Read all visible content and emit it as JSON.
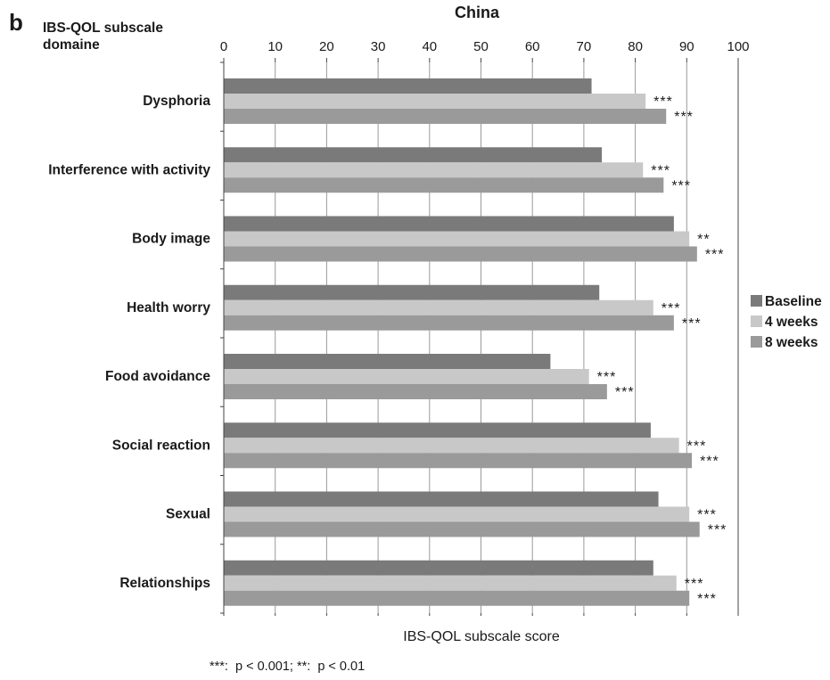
{
  "panel_letter": "b",
  "footnote": "***:  p < 0.001; **:  p < 0.01",
  "chart_data": {
    "type": "bar",
    "orientation": "horizontal",
    "title": "China",
    "ylabel": "IBS-QOL subscale domaine",
    "xlabel": "IBS-QOL subscale score",
    "xlim": [
      0,
      100
    ],
    "xticks": [
      0,
      10,
      20,
      30,
      40,
      50,
      60,
      70,
      80,
      90,
      100
    ],
    "grid": "vertical",
    "legend_position": "right",
    "categories": [
      "Dysphoria",
      "Interference with activity",
      "Body image",
      "Health worry",
      "Food avoidance",
      "Social reaction",
      "Sexual",
      "Relationships"
    ],
    "series": [
      {
        "name": "Baseline",
        "color": "#7a7a7a",
        "values": [
          71.5,
          73.5,
          87.5,
          73,
          63.5,
          83,
          84.5,
          83.5
        ]
      },
      {
        "name": "4 weeks",
        "color": "#c8c8c8",
        "values": [
          82,
          81.5,
          90.5,
          83.5,
          71,
          88.5,
          90.5,
          88
        ],
        "annotations": [
          "***",
          "***",
          "**",
          "***",
          "***",
          "***",
          "***",
          "***"
        ]
      },
      {
        "name": "8 weeks",
        "color": "#9a9a9a",
        "values": [
          86,
          85.5,
          92,
          87.5,
          74.5,
          91,
          92.5,
          90.5
        ],
        "annotations": [
          "***",
          "***",
          "***",
          "***",
          "***",
          "***",
          "***",
          "***"
        ]
      }
    ]
  }
}
